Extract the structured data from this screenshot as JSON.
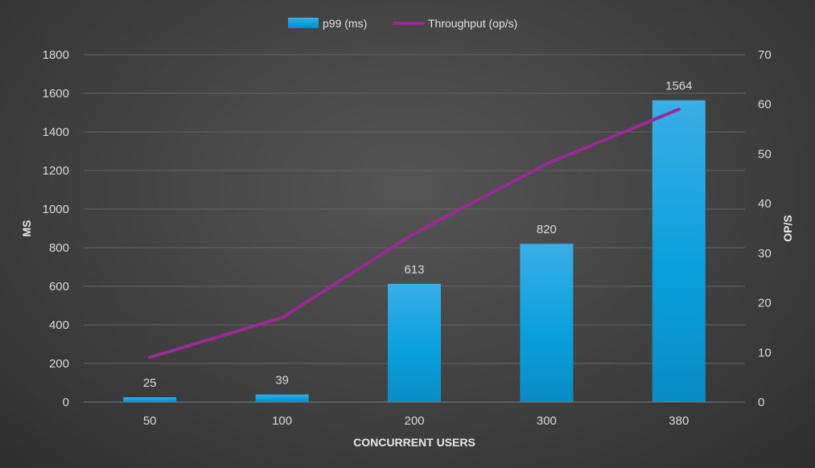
{
  "chart_data": {
    "type": "bar",
    "title": "",
    "categories": [
      "50",
      "100",
      "200",
      "300",
      "380"
    ],
    "series": [
      {
        "name": "p99 (ms)",
        "kind": "bar",
        "axis": "left",
        "values": [
          25,
          39,
          613,
          820,
          1564
        ],
        "data_labels": [
          "25",
          "39",
          "613",
          "820",
          "1564"
        ],
        "color": "#0aa0dc"
      },
      {
        "name": "Throughput (op/s)",
        "kind": "line",
        "axis": "right",
        "values": [
          9,
          17,
          34,
          48,
          59
        ],
        "color": "#9b2b94"
      }
    ],
    "xlabel": "CONCURRENT USERS",
    "ylabel": "MS",
    "y2label": "OP/S",
    "ylim": [
      0,
      1800
    ],
    "y2lim": [
      0,
      70
    ],
    "yticks": [
      "0",
      "200",
      "400",
      "600",
      "800",
      "1000",
      "1200",
      "1400",
      "1600",
      "1800"
    ],
    "y2ticks": [
      "0",
      "10",
      "20",
      "30",
      "40",
      "50",
      "60",
      "70"
    ],
    "grid": true,
    "legend_position": "top"
  }
}
